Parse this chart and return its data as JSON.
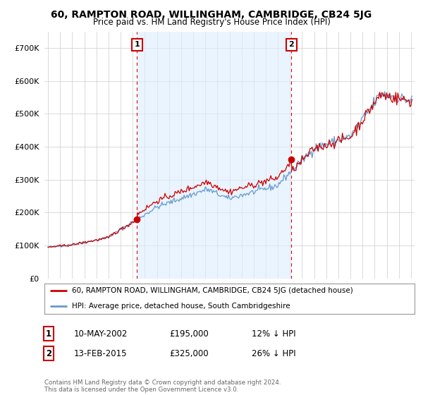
{
  "title": "60, RAMPTON ROAD, WILLINGHAM, CAMBRIDGE, CB24 5JG",
  "subtitle": "Price paid vs. HM Land Registry's House Price Index (HPI)",
  "footer": "Contains HM Land Registry data © Crown copyright and database right 2024.\nThis data is licensed under the Open Government Licence v3.0.",
  "legend_line1": "60, RAMPTON ROAD, WILLINGHAM, CAMBRIDGE, CB24 5JG (detached house)",
  "legend_line2": "HPI: Average price, detached house, South Cambridgeshire",
  "sale1_date": "10-MAY-2002",
  "sale1_price": "£195,000",
  "sale1_hpi": "12% ↓ HPI",
  "sale2_date": "13-FEB-2015",
  "sale2_price": "£325,000",
  "sale2_hpi": "26% ↓ HPI",
  "sale1_year": 2002.36,
  "sale2_year": 2015.12,
  "sale1_value": 195000,
  "sale2_value": 325000,
  "line_color_red": "#cc0000",
  "line_color_blue": "#6699cc",
  "shade_color": "#ddeeff",
  "vline_color": "#cc0000",
  "marker_box_color": "#cc0000",
  "bg_color": "#ffffff",
  "grid_color": "#cccccc",
  "ylim": [
    0,
    750000
  ],
  "xlim_start": 1994.7,
  "xlim_end": 2025.3,
  "yticks": [
    0,
    100000,
    200000,
    300000,
    400000,
    500000,
    600000,
    700000
  ]
}
